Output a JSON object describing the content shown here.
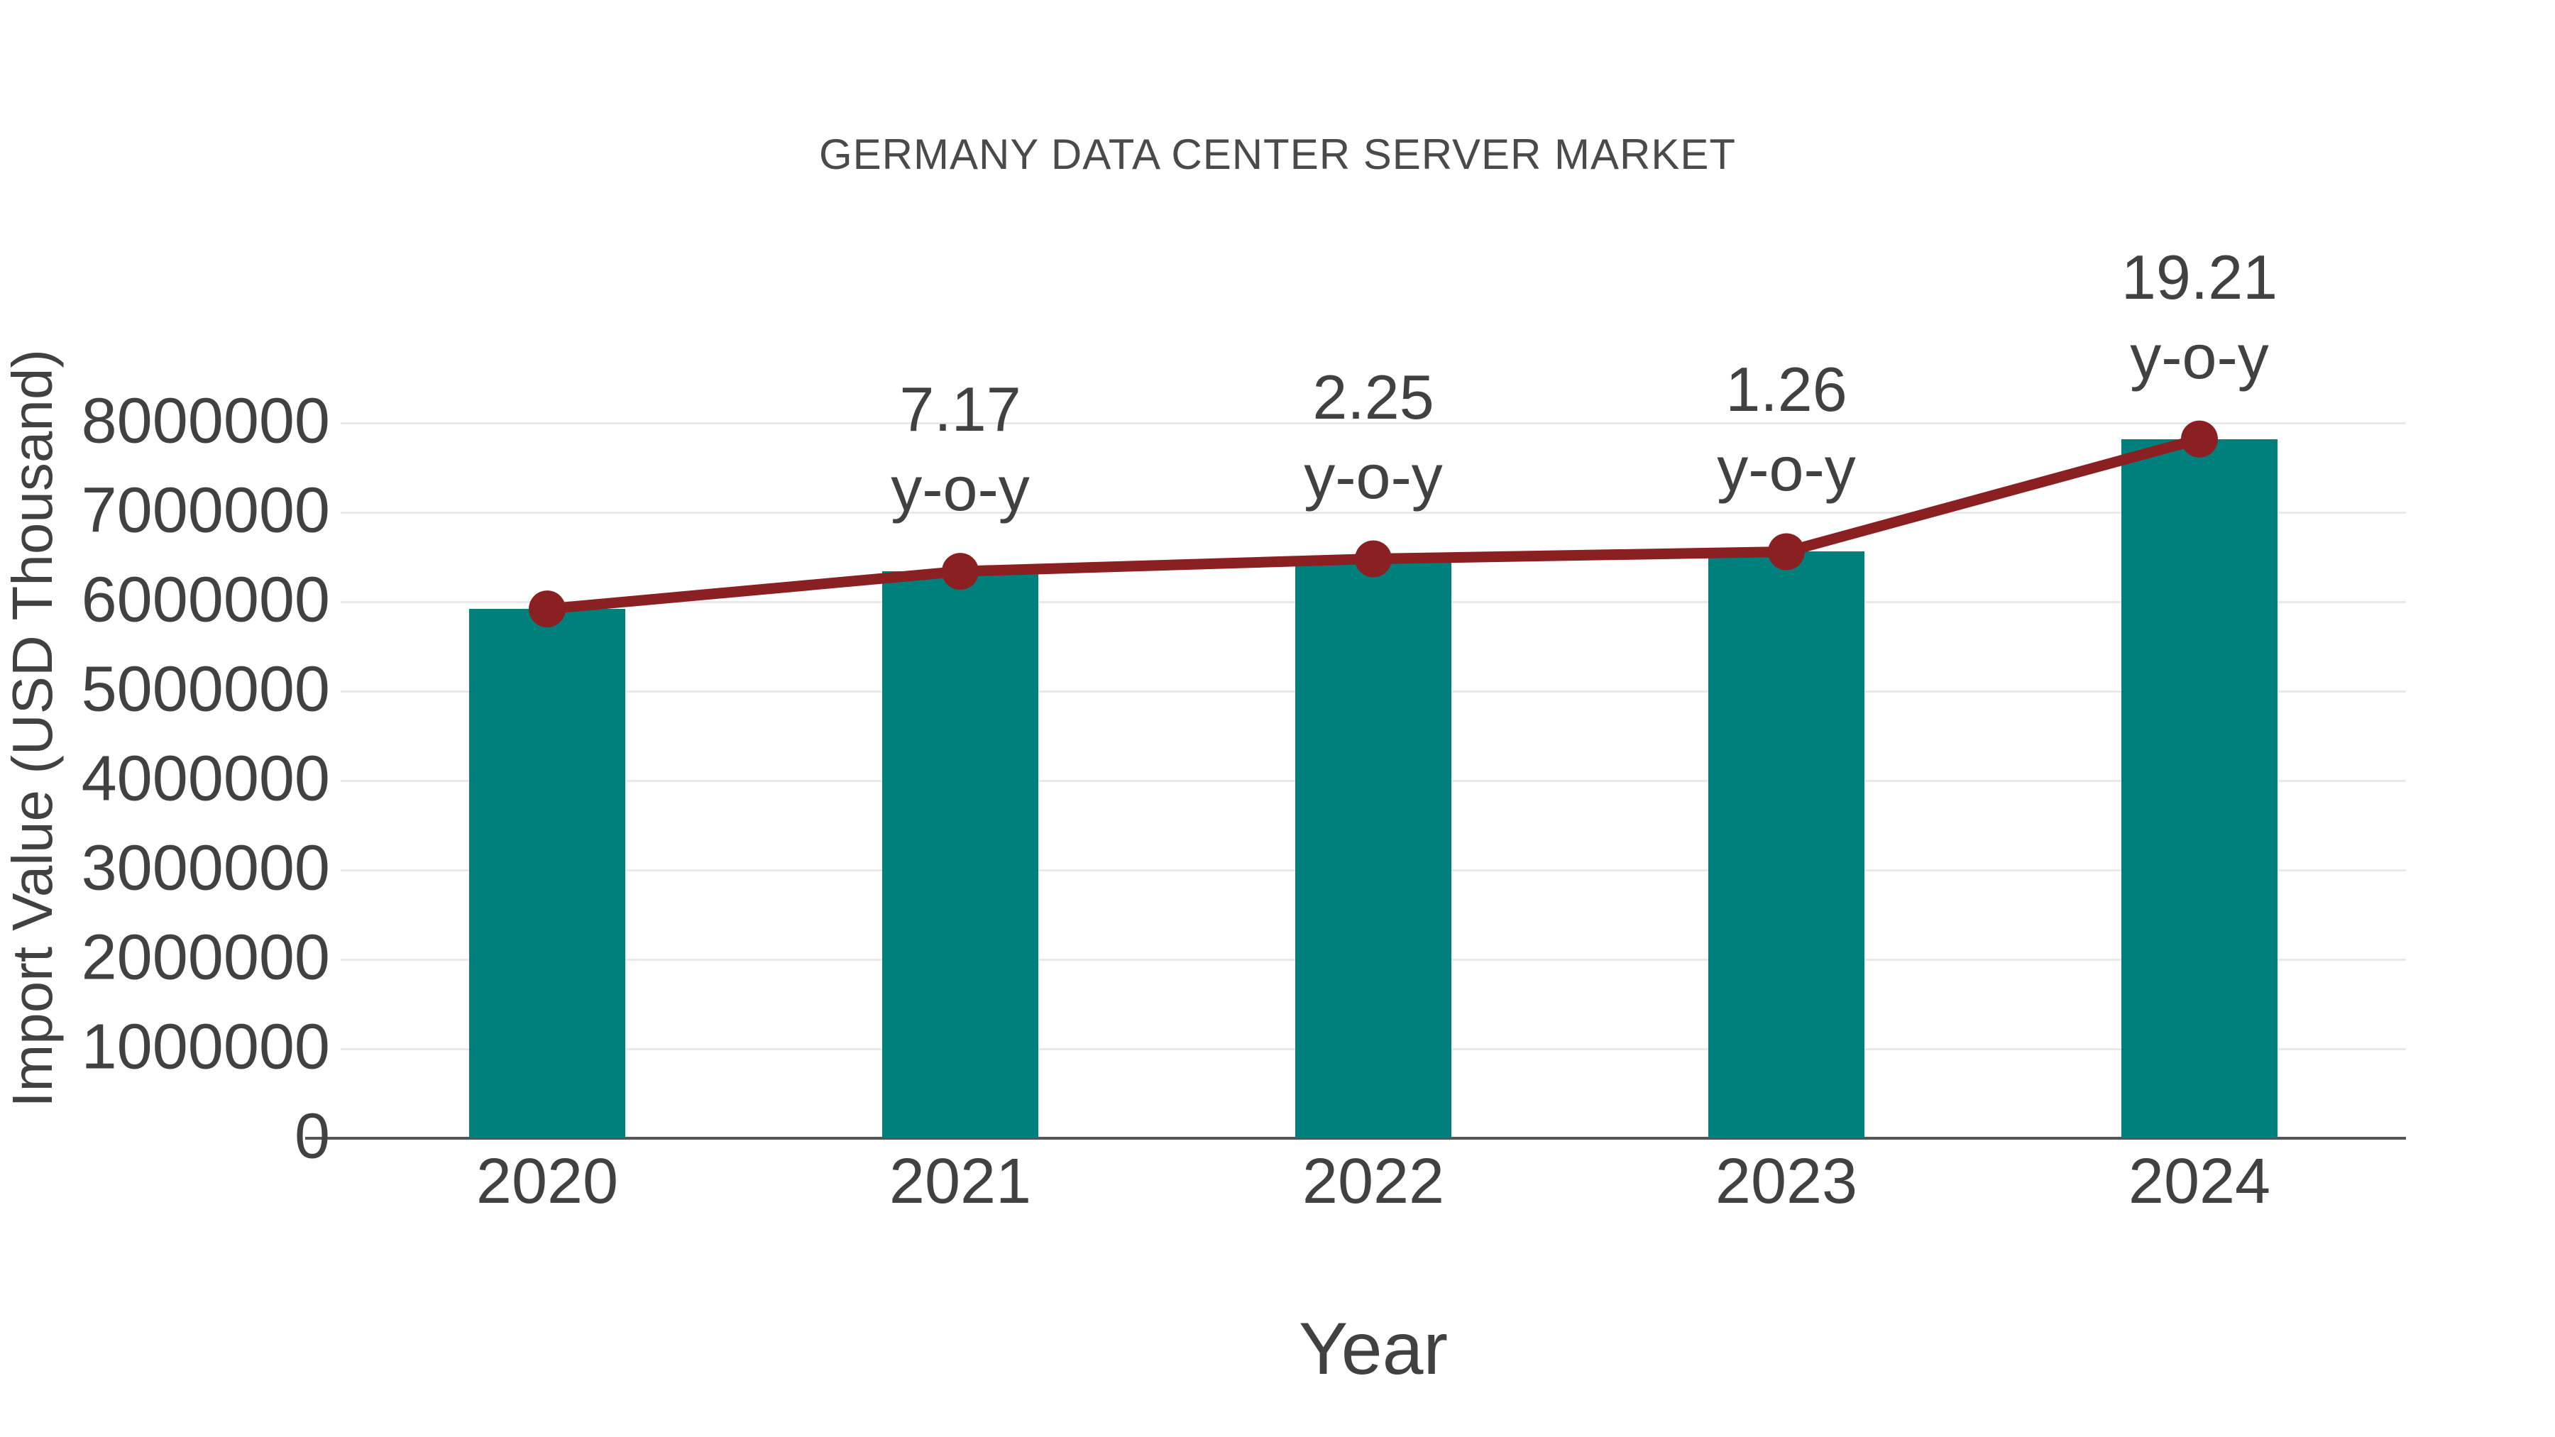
{
  "chart_data": {
    "type": "bar",
    "combo": "bar+line",
    "title": "GERMANY DATA CENTER SERVER MARKET",
    "xlabel": "Year",
    "ylabel": "Import Value (USD Thousand)",
    "categories": [
      "2020",
      "2021",
      "2022",
      "2023",
      "2024"
    ],
    "series": [
      {
        "name": "Import Value (USD Thousand)",
        "type": "bar",
        "values": [
          5920000,
          6340000,
          6480000,
          6560000,
          7820000
        ]
      },
      {
        "name": "y-o-y growth (%)",
        "type": "line",
        "values": [
          null,
          7.17,
          2.25,
          1.26,
          19.21
        ],
        "note": "line is plotted along the bar-top import values; labels show y-o-y %"
      }
    ],
    "annotations": [
      {
        "category": "2021",
        "text": "7.17",
        "subtext": "y-o-y"
      },
      {
        "category": "2022",
        "text": "2.25",
        "subtext": "y-o-y"
      },
      {
        "category": "2023",
        "text": "1.26",
        "subtext": "y-o-y"
      },
      {
        "category": "2024",
        "text": "19.21",
        "subtext": "y-o-y"
      }
    ],
    "ylim": [
      0,
      8000000
    ],
    "ytick_step": 1000000,
    "ytick_labels": [
      "0",
      "1000000",
      "2000000",
      "3000000",
      "4000000",
      "5000000",
      "6000000",
      "7000000",
      "8000000"
    ],
    "grid": true,
    "legend_position": "none",
    "colors": {
      "bar": "#00807d",
      "line": "#8b2023",
      "marker": "#8b2023",
      "text": "#414141",
      "title": "#4a4a4a",
      "grid": "#e9e9e9",
      "axis": "#555555",
      "background": "#ffffff"
    }
  }
}
